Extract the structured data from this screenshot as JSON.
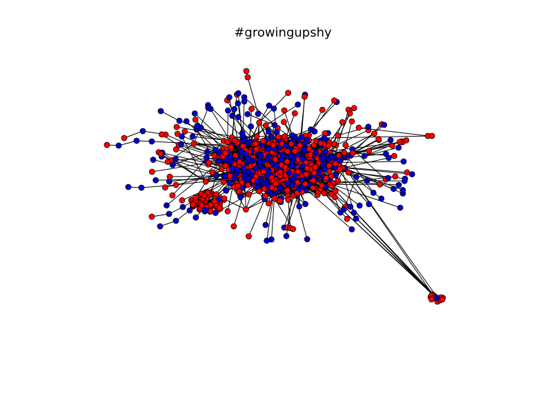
{
  "figure": {
    "title": "#growingupshy"
  },
  "graph": {
    "node_colors": [
      "#ff0000",
      "#0000cc"
    ],
    "node_outline": "#000000",
    "edge_color": "#000000",
    "background": "#ffffff"
  }
}
